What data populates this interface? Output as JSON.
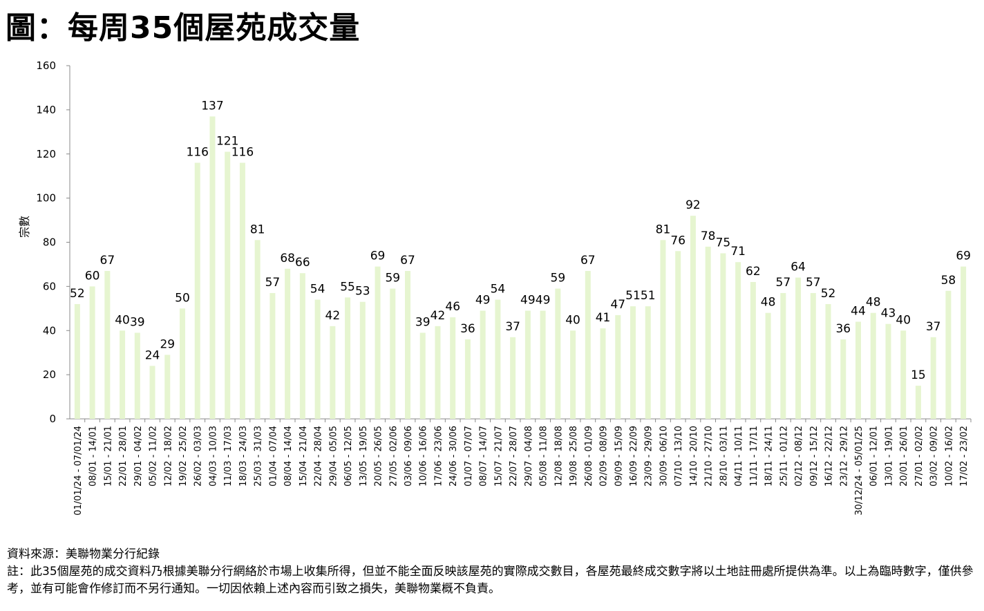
{
  "title": "圖：每周35個屋苑成交量",
  "source": "資料來源：美聯物業分行紀錄",
  "note": "註：此35個屋苑的成交資料乃根據美聯分行網絡於市場上收集所得，但並不能全面反映該屋苑的實際成交數目，各屋苑最終成交數字將以土地註冊處所提供為準。以上為臨時數字，僅供參考，並有可能會作修訂而不另行通知。一切因依賴上述內容而引致之損失，美聯物業概不負責。",
  "colors": {
    "bar": "#e6f5d0",
    "axis": "#888888"
  },
  "chart_data": {
    "type": "bar",
    "title": "圖：每周35個屋苑成交量",
    "xlabel": "",
    "ylabel": "宗數",
    "ylim": [
      0,
      160
    ],
    "yticks": [
      0,
      20,
      40,
      60,
      80,
      100,
      120,
      140,
      160
    ],
    "grid": false,
    "categories": [
      "01/01/24 - 07/01/24",
      "08/01 - 14/01",
      "15/01 - 21/01",
      "22/01 - 28/01",
      "29/01 - 04/02",
      "05/02 - 11/02",
      "12/02 - 18/02",
      "19/02 - 25/02",
      "26/02 - 03/03",
      "04/03 - 10/03",
      "11/03 - 17/03",
      "18/03 - 24/03",
      "25/03 - 31/03",
      "01/04 - 07/04",
      "08/04 - 14/04",
      "15/04 - 21/04",
      "22/04 - 28/04",
      "29/04 - 05/05",
      "06/05 - 12/05",
      "13/05 - 19/05",
      "20/05 - 26/05",
      "27/05 - 02/06",
      "03/06 - 09/06",
      "10/06 - 16/06",
      "17/06 - 23/06",
      "24/06 - 30/06",
      "01/07 - 07/07",
      "08/07 - 14/07",
      "15/07 - 21/07",
      "22/07 - 28/07",
      "29/07 - 04/08",
      "05/08 - 11/08",
      "12/08 - 18/08",
      "19/08 - 25/08",
      "26/08 - 01/09",
      "02/09 - 08/09",
      "09/09 - 15/09",
      "16/09 - 22/09",
      "23/09 - 29/09",
      "30/09 - 06/10",
      "07/10 - 13/10",
      "14/10 - 20/10",
      "21/10 - 27/10",
      "28/10 - 03/11",
      "04/11 - 10/11",
      "11/11 - 17/11",
      "18/11 - 24/11",
      "25/11 - 01/12",
      "02/12 - 08/12",
      "09/12 - 15/12",
      "16/12 - 22/12",
      "23/12 - 29/12",
      "30/12/24 - 05/01/25",
      "06/01 - 12/01",
      "13/01 - 19/01",
      "20/01 - 26/01",
      "27/01 - 02/02",
      "03/02 - 09/02",
      "10/02 - 16/02",
      "17/02 - 23/02"
    ],
    "values": [
      52,
      60,
      67,
      40,
      39,
      24,
      29,
      50,
      116,
      137,
      121,
      116,
      81,
      57,
      68,
      66,
      54,
      42,
      55,
      53,
      69,
      59,
      67,
      39,
      42,
      46,
      36,
      49,
      54,
      37,
      49,
      49,
      59,
      40,
      67,
      41,
      47,
      51,
      51,
      81,
      76,
      92,
      78,
      75,
      71,
      62,
      48,
      57,
      64,
      57,
      52,
      36,
      44,
      48,
      43,
      40,
      15,
      37,
      58,
      69
    ]
  }
}
